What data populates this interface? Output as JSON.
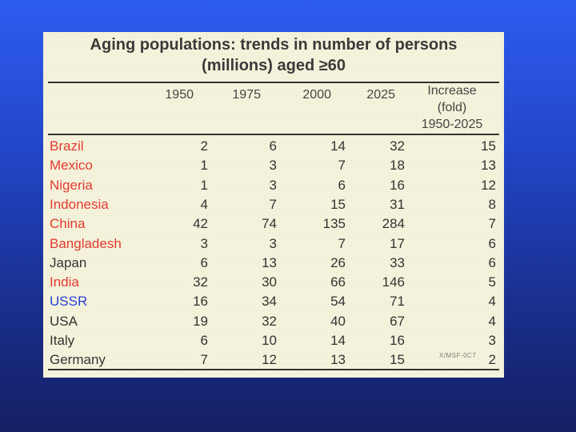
{
  "title_line1": "Aging populations: trends in number of persons",
  "title_line2": "(millions) aged ≥60",
  "columns": [
    "1950",
    "1975",
    "2000",
    "2025"
  ],
  "increase_header": [
    "Increase",
    "(fold)",
    "1950-2025"
  ],
  "rows": [
    {
      "country": "Brazil",
      "color": "#e23a2e",
      "values": [
        "2",
        "6",
        "14",
        "32",
        "15"
      ]
    },
    {
      "country": "Mexico",
      "color": "#e23a2e",
      "values": [
        "1",
        "3",
        "7",
        "18",
        "13"
      ]
    },
    {
      "country": "Nigeria",
      "color": "#e23a2e",
      "values": [
        "1",
        "3",
        "6",
        "16",
        "12"
      ]
    },
    {
      "country": "Indonesia",
      "color": "#e23a2e",
      "values": [
        "4",
        "7",
        "15",
        "31",
        "8"
      ]
    },
    {
      "country": "China",
      "color": "#e23a2e",
      "values": [
        "42",
        "74",
        "135",
        "284",
        "7"
      ]
    },
    {
      "country": "Bangladesh",
      "color": "#e23a2e",
      "values": [
        "3",
        "3",
        "7",
        "17",
        "6"
      ]
    },
    {
      "country": "Japan",
      "color": "#333333",
      "values": [
        "6",
        "13",
        "26",
        "33",
        "6"
      ]
    },
    {
      "country": "India",
      "color": "#e23a2e",
      "values": [
        "32",
        "30",
        "66",
        "146",
        "5"
      ]
    },
    {
      "country": "USSR",
      "color": "#2540d8",
      "values": [
        "16",
        "34",
        "54",
        "71",
        "4"
      ]
    },
    {
      "country": "USA",
      "color": "#333333",
      "values": [
        "19",
        "32",
        "40",
        "67",
        "4"
      ]
    },
    {
      "country": "Italy",
      "color": "#333333",
      "values": [
        "6",
        "10",
        "14",
        "16",
        "3"
      ]
    },
    {
      "country": "Germany",
      "color": "#333333",
      "values": [
        "7",
        "12",
        "13",
        "15",
        "2"
      ]
    }
  ],
  "source_code": "X/MSF-0C7"
}
